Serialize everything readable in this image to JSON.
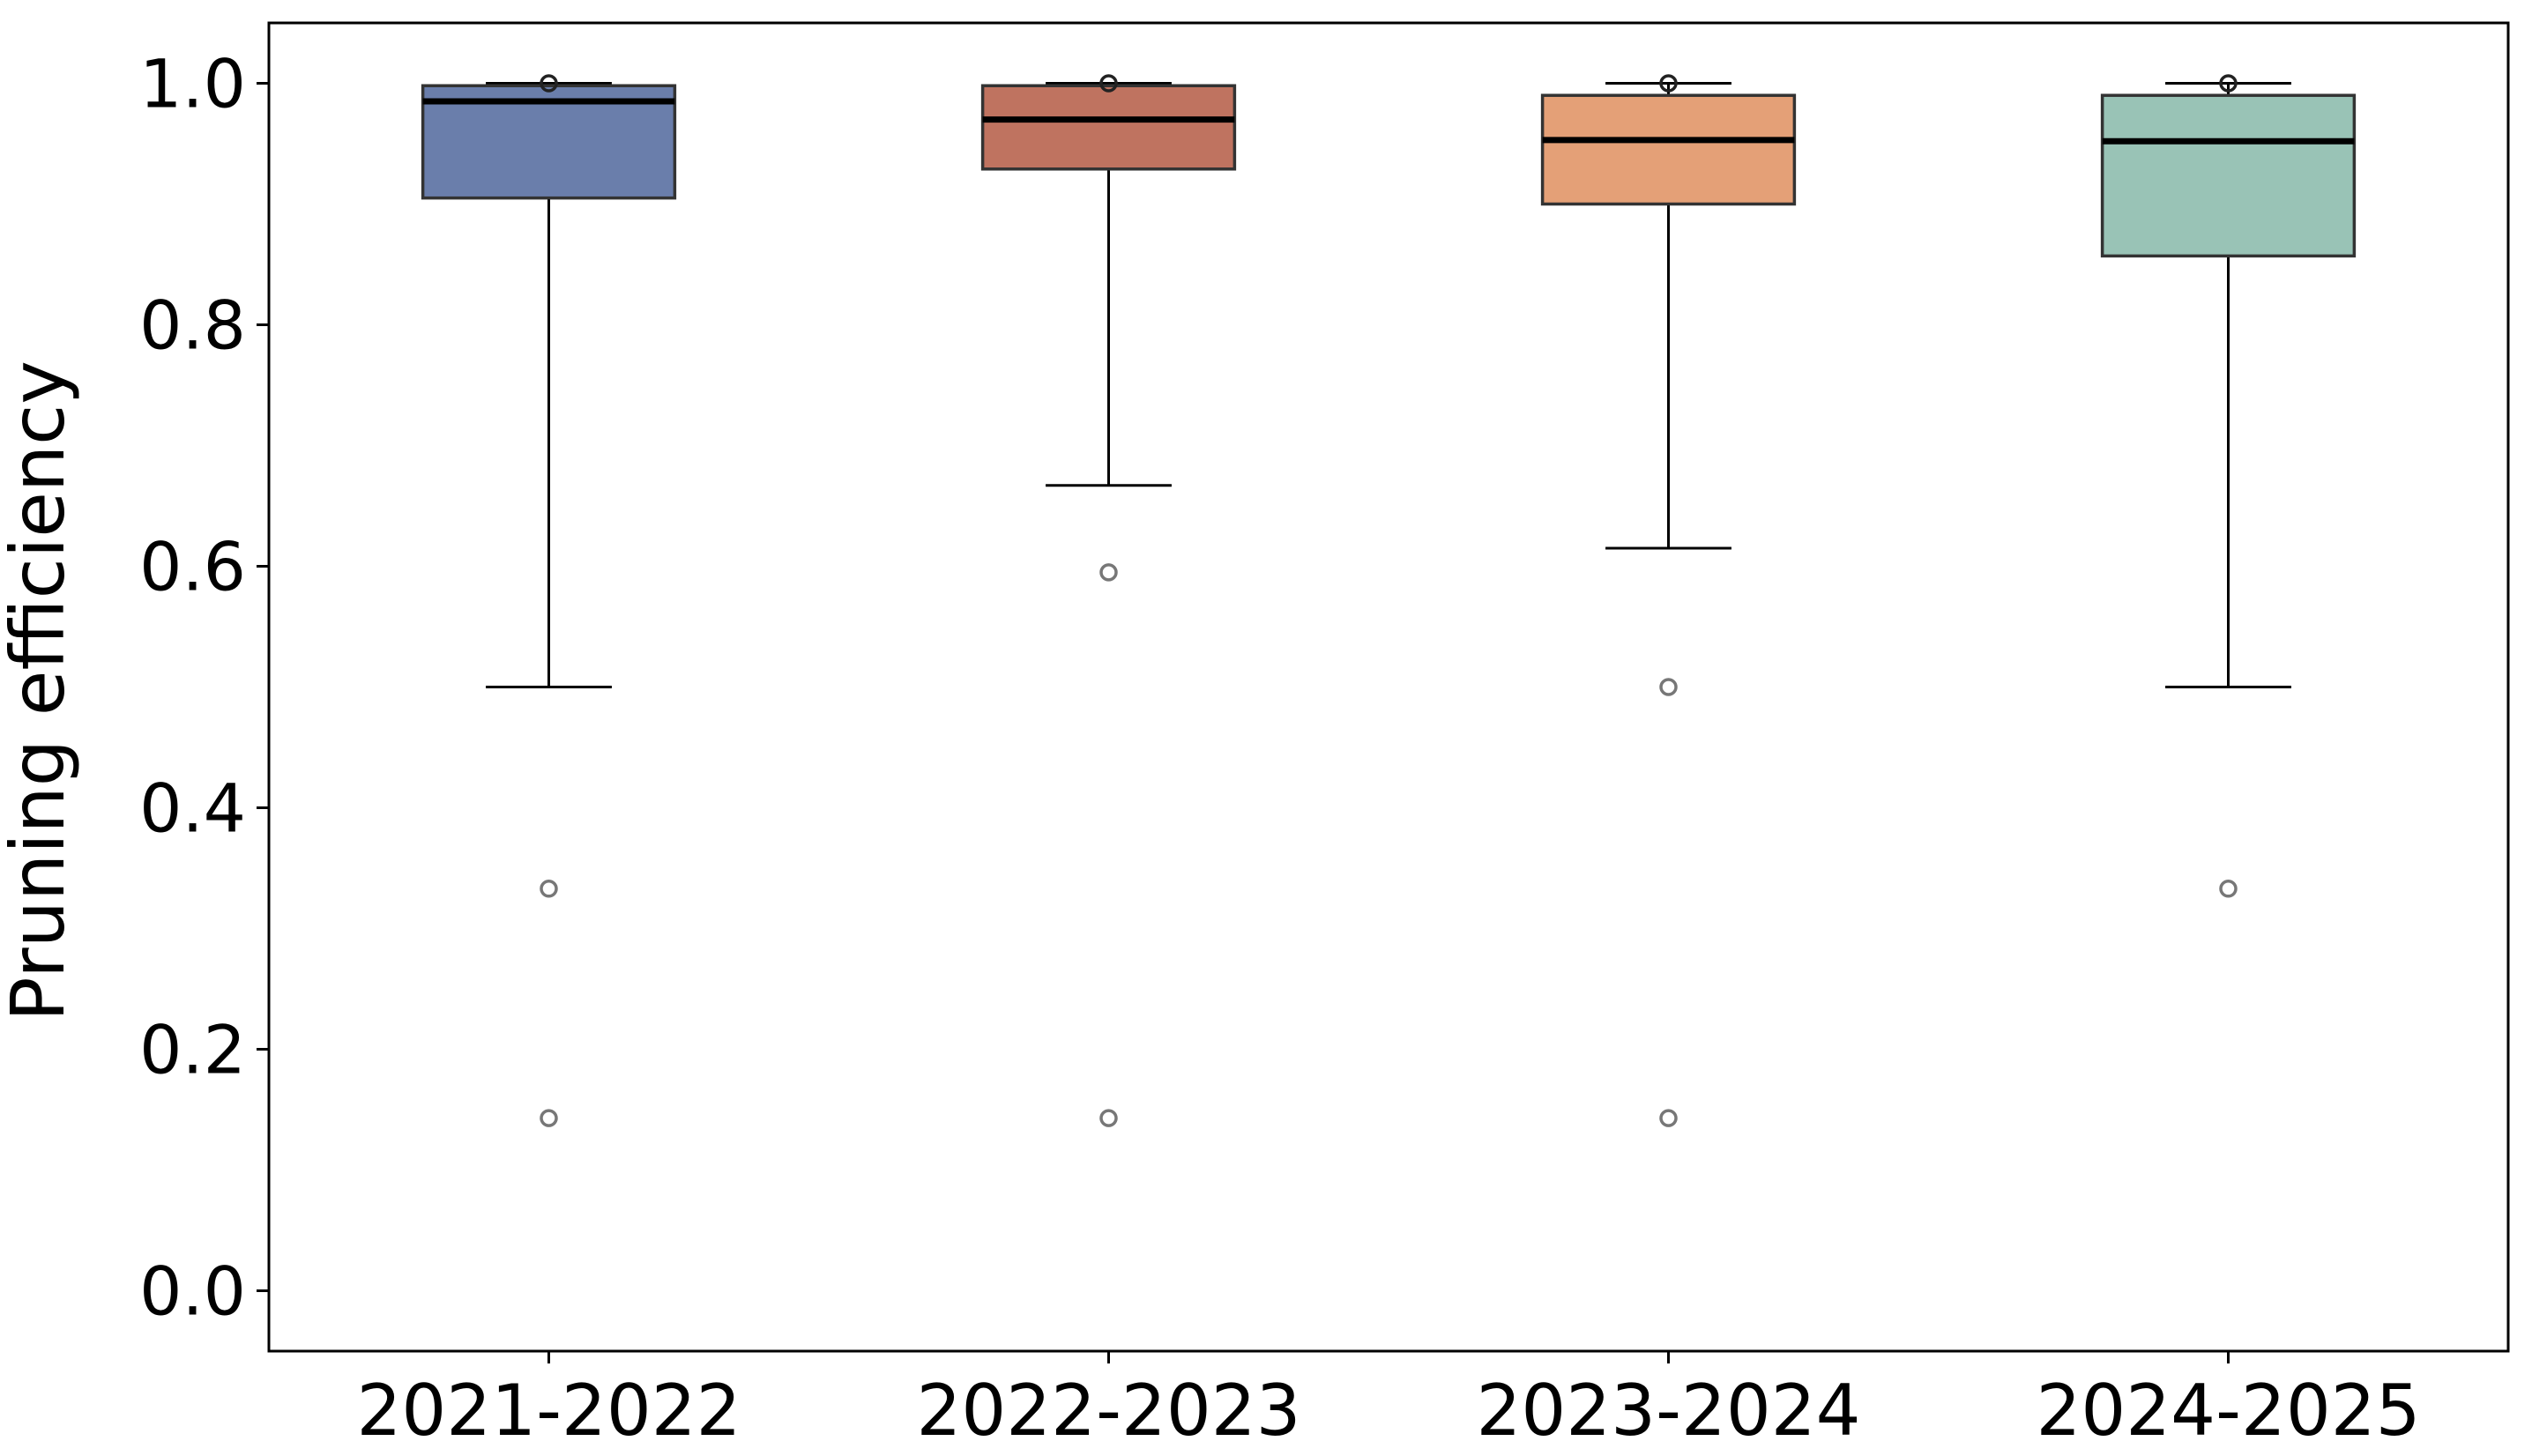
{
  "chart_data": {
    "type": "box",
    "title": "",
    "xlabel": "",
    "ylabel": "Pruning efficiency",
    "ylim": [
      -0.05,
      1.05
    ],
    "yticks": [
      {
        "value": 0.0,
        "label": "0.0"
      },
      {
        "value": 0.2,
        "label": "0.2"
      },
      {
        "value": 0.4,
        "label": "0.4"
      },
      {
        "value": 0.6,
        "label": "0.6"
      },
      {
        "value": 0.8,
        "label": "0.8"
      },
      {
        "value": 1.0,
        "label": "1.0"
      }
    ],
    "grid": false,
    "categories": [
      "2021-2022",
      "2022-2023",
      "2023-2024",
      "2024-2025"
    ],
    "boxes": [
      {
        "category": "2021-2022",
        "whisker_low": 0.5,
        "q1": 0.905,
        "median": 0.985,
        "q3": 0.998,
        "whisker_high": 1.0,
        "outliers": [
          0.333,
          0.143,
          1.0
        ],
        "color": "#6a7eab"
      },
      {
        "category": "2022-2023",
        "whisker_low": 0.667,
        "q1": 0.929,
        "median": 0.97,
        "q3": 0.998,
        "whisker_high": 1.0,
        "outliers": [
          0.595,
          0.143,
          1.0
        ],
        "color": "#bf7360"
      },
      {
        "category": "2023-2024",
        "whisker_low": 0.615,
        "q1": 0.9,
        "median": 0.953,
        "q3": 0.99,
        "whisker_high": 1.0,
        "outliers": [
          0.5,
          0.143,
          1.0
        ],
        "color": "#e4a077"
      },
      {
        "category": "2024-2025",
        "whisker_low": 0.5,
        "q1": 0.857,
        "median": 0.952,
        "q3": 0.99,
        "whisker_high": 1.0,
        "outliers": [
          0.333,
          1.0
        ],
        "color": "#99c3b6"
      }
    ]
  }
}
